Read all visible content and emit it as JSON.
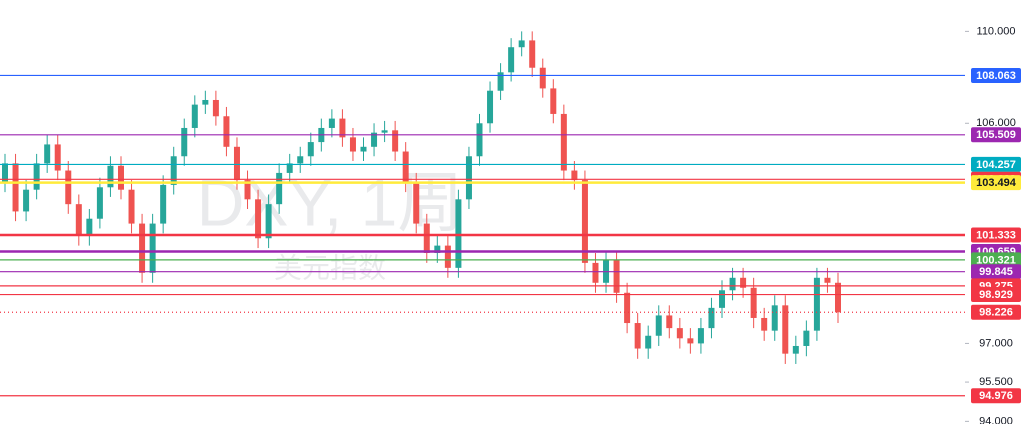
{
  "chart_data": {
    "type": "candlestick",
    "watermark_title": "DXY, 1周",
    "watermark_subtitle": "美元指数",
    "ylim": [
      93.9,
      111.4
    ],
    "log_scale": true,
    "grid": false,
    "yticks": [
      {
        "value": 110,
        "label": "110.000"
      },
      {
        "value": 106,
        "label": "106.000"
      },
      {
        "value": 97,
        "label": "97.000"
      },
      {
        "value": 95.5,
        "label": "95.500"
      },
      {
        "value": 94,
        "label": "94.000"
      }
    ],
    "up_color": "#26a69a",
    "down_color": "#ef5350",
    "candles": {
      "open": [
        103.5,
        104.3,
        102.3,
        103.2,
        104.3,
        105.1,
        104.0,
        102.6,
        101.3,
        102.0,
        103.3,
        104.2,
        103.2,
        101.8,
        99.8,
        101.8,
        103.4,
        104.6,
        105.8,
        106.8,
        107.0,
        106.3,
        105.0,
        103.6,
        102.8,
        101.2,
        102.6,
        103.9,
        104.3,
        104.6,
        105.2,
        105.8,
        106.2,
        105.4,
        104.8,
        105.0,
        105.6,
        105.7,
        104.8,
        103.5,
        101.8,
        100.6,
        100.9,
        100.0,
        102.8,
        104.6,
        106.0,
        107.4,
        108.2,
        109.3,
        109.6,
        108.4,
        107.5,
        106.4,
        104.0,
        103.6,
        100.2,
        99.4,
        100.3,
        99.0,
        97.8,
        96.8,
        97.3,
        98.1,
        97.6,
        97.2,
        97.0,
        97.6,
        98.4,
        99.1,
        99.6,
        99.2,
        98.0,
        97.5,
        98.5,
        96.6,
        96.9,
        97.5,
        99.6,
        99.4
      ],
      "high": [
        104.7,
        104.7,
        103.6,
        104.7,
        105.5,
        105.5,
        104.4,
        103.0,
        102.4,
        103.7,
        104.6,
        104.6,
        103.6,
        102.2,
        102.2,
        103.8,
        105.0,
        106.2,
        107.2,
        107.4,
        107.4,
        106.7,
        105.4,
        104.0,
        103.2,
        103.0,
        104.3,
        104.7,
        105.0,
        105.6,
        106.2,
        106.6,
        106.6,
        105.8,
        105.4,
        106.0,
        106.1,
        106.1,
        105.2,
        103.9,
        102.2,
        101.3,
        101.3,
        103.2,
        105.0,
        106.4,
        107.8,
        108.6,
        109.7,
        110.0,
        110.0,
        108.8,
        107.9,
        106.8,
        104.4,
        104.0,
        100.6,
        100.7,
        100.7,
        99.4,
        98.2,
        97.7,
        98.5,
        98.5,
        98.0,
        97.6,
        98.0,
        98.8,
        99.5,
        100.0,
        100.0,
        99.6,
        98.4,
        98.9,
        98.9,
        97.3,
        97.9,
        100.0,
        100.0,
        99.8
      ],
      "low": [
        103.1,
        101.9,
        101.9,
        102.8,
        103.9,
        103.6,
        102.2,
        100.9,
        100.9,
        101.6,
        102.9,
        102.8,
        101.4,
        99.4,
        99.4,
        101.4,
        103.0,
        104.2,
        105.4,
        106.4,
        105.9,
        104.6,
        103.2,
        102.4,
        100.8,
        100.8,
        102.2,
        103.5,
        103.9,
        104.2,
        104.8,
        105.4,
        105.0,
        104.4,
        104.4,
        104.6,
        105.2,
        104.4,
        103.1,
        101.4,
        100.2,
        100.2,
        99.6,
        99.6,
        102.4,
        104.2,
        105.6,
        107.0,
        107.8,
        108.9,
        108.0,
        107.1,
        106.0,
        103.6,
        103.2,
        99.8,
        99.0,
        99.0,
        98.6,
        97.4,
        96.4,
        96.4,
        96.9,
        97.2,
        96.8,
        96.6,
        96.6,
        97.2,
        98.0,
        98.7,
        98.8,
        97.6,
        97.1,
        97.1,
        96.2,
        96.2,
        96.5,
        97.1,
        99.0,
        97.8
      ],
      "close": [
        104.3,
        102.3,
        103.2,
        104.3,
        105.1,
        104.0,
        102.6,
        101.3,
        102.0,
        103.3,
        104.2,
        103.2,
        101.8,
        99.8,
        101.8,
        103.4,
        104.6,
        105.8,
        106.8,
        107.0,
        106.3,
        105.0,
        103.6,
        102.8,
        101.2,
        102.6,
        103.9,
        104.3,
        104.6,
        105.2,
        105.8,
        106.2,
        105.4,
        104.8,
        105.0,
        105.6,
        105.7,
        104.8,
        103.5,
        101.8,
        100.6,
        100.9,
        100.0,
        102.8,
        104.6,
        106.0,
        107.4,
        108.2,
        109.3,
        109.6,
        108.4,
        107.5,
        106.4,
        104.0,
        103.6,
        100.2,
        99.4,
        100.3,
        99.0,
        97.8,
        96.8,
        97.3,
        98.1,
        97.6,
        97.2,
        97.0,
        97.6,
        98.4,
        99.1,
        99.6,
        99.2,
        98.0,
        97.5,
        98.5,
        96.6,
        96.9,
        97.5,
        99.6,
        99.4,
        98.226
      ]
    },
    "levels": [
      {
        "value": 108.063,
        "color": "#2962ff",
        "bold": false,
        "dotted": false
      },
      {
        "value": 105.509,
        "color": "#9c27b0",
        "bold": false,
        "dotted": false
      },
      {
        "value": 104.257,
        "color": "#00acc1",
        "bold": false,
        "dotted": false
      },
      {
        "value": 103.633,
        "color": "#f23645",
        "bold": false,
        "dotted": false
      },
      {
        "value": 103.494,
        "color": "#ffeb3b",
        "bold": true,
        "dotted": false
      },
      {
        "value": 101.333,
        "color": "#f23645",
        "bold": true,
        "dotted": false
      },
      {
        "value": 100.659,
        "color": "#9c27b0",
        "bold": true,
        "dotted": false
      },
      {
        "value": 100.321,
        "color": "#4caf50",
        "bold": false,
        "dotted": false
      },
      {
        "value": 99.845,
        "color": "#9c27b0",
        "bold": false,
        "dotted": false
      },
      {
        "value": 99.275,
        "color": "#f23645",
        "bold": false,
        "dotted": false
      },
      {
        "value": 98.929,
        "color": "#f23645",
        "bold": false,
        "dotted": false
      },
      {
        "value": 98.226,
        "color": "#f23645",
        "bold": false,
        "dotted": true
      },
      {
        "value": 94.976,
        "color": "#f23645",
        "bold": false,
        "dotted": false
      }
    ]
  }
}
